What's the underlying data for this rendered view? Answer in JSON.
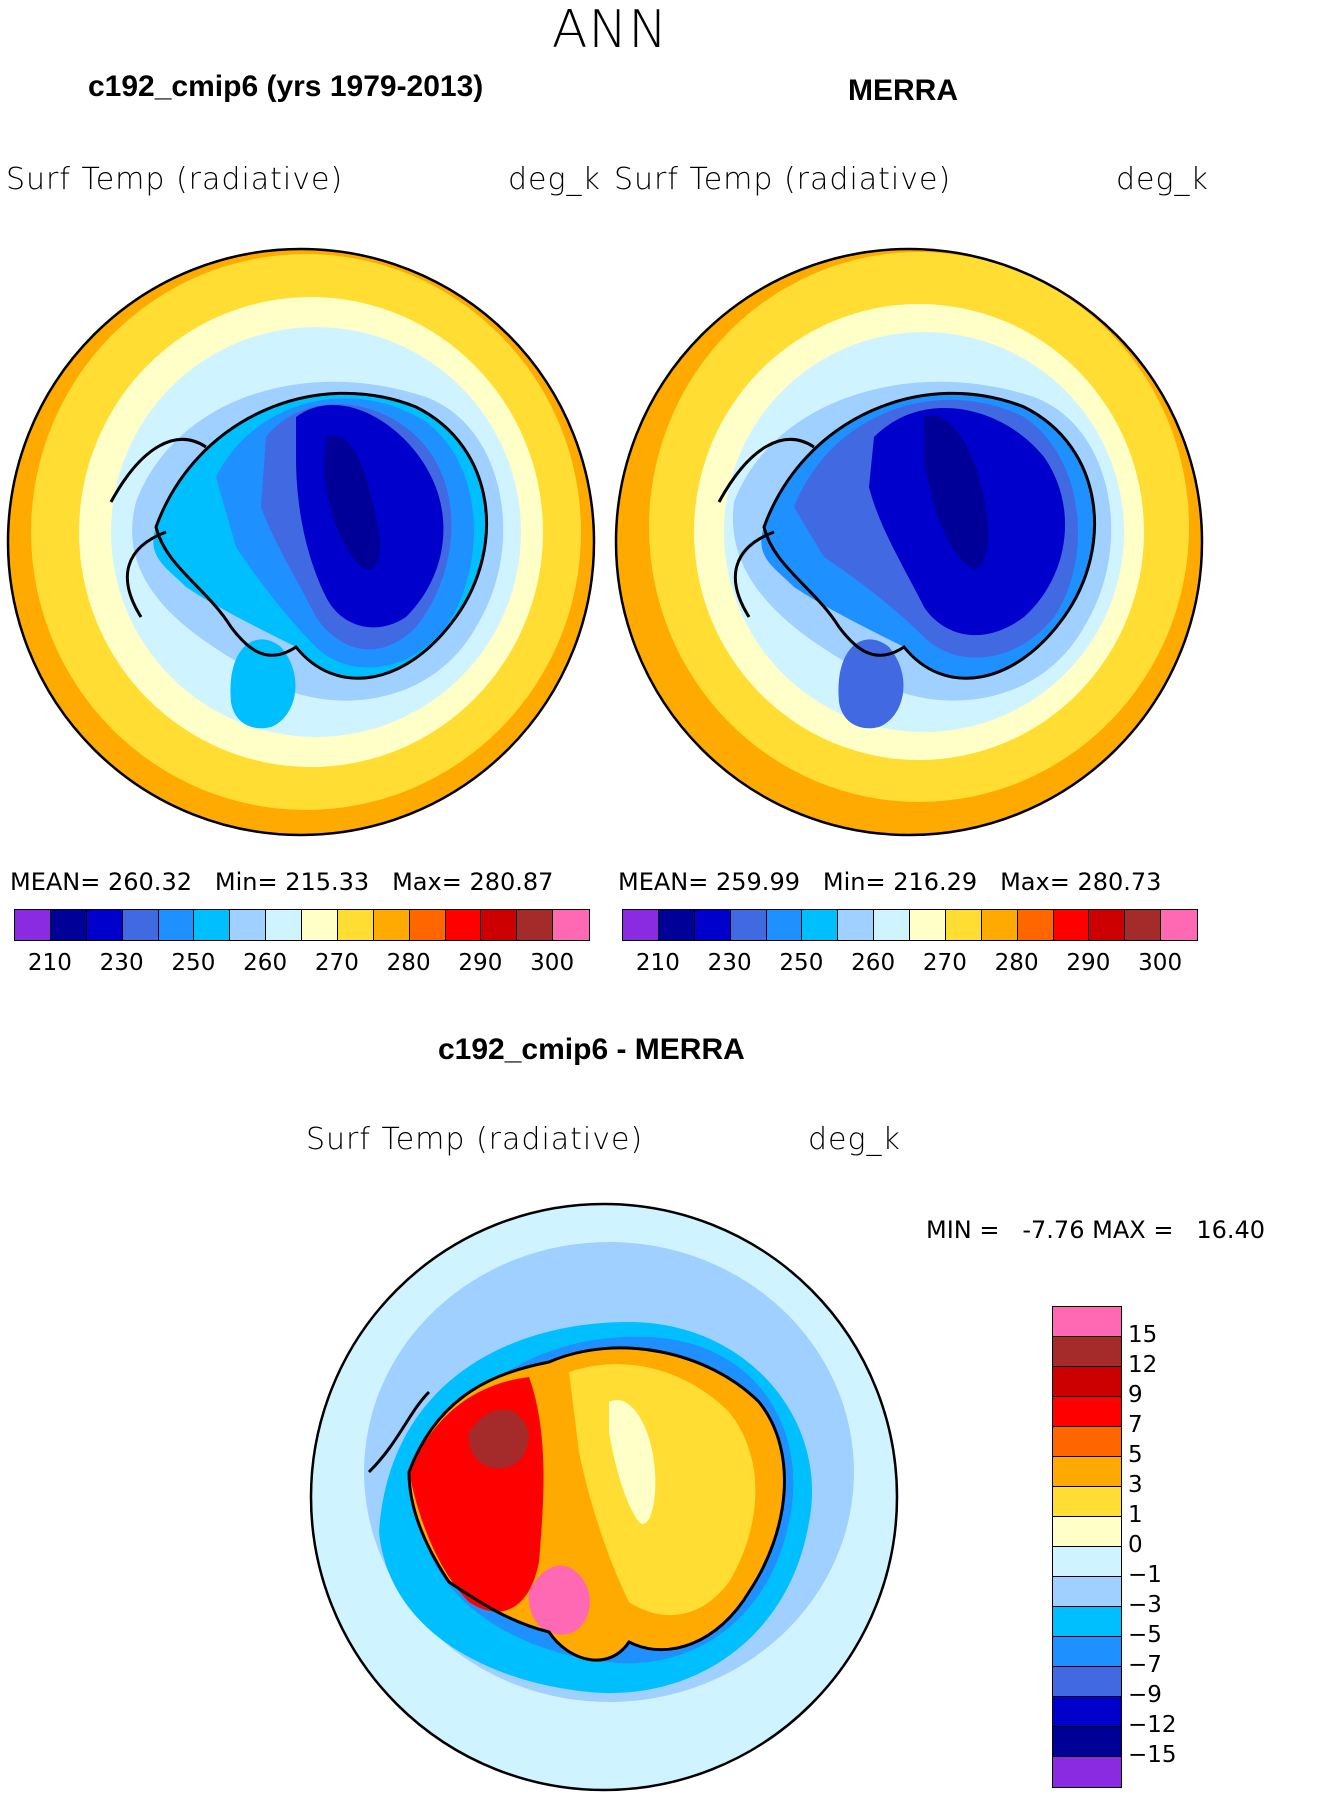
{
  "figure": {
    "title": "ANN"
  },
  "panels": [
    {
      "title": "c192_cmip6 (yrs 1979-2013)",
      "variable": "Surf Temp (radiative)",
      "units": "deg_k",
      "stats": {
        "mean_label": "MEAN=",
        "mean": "260.32",
        "min_label": "Min=",
        "min": "215.33",
        "max_label": "Max=",
        "max": "280.87"
      }
    },
    {
      "title": "MERRA",
      "variable": "Surf Temp (radiative)",
      "units": "deg_k",
      "stats": {
        "mean_label": "MEAN=",
        "mean": "259.99",
        "min_label": "Min=",
        "min": "216.29",
        "max_label": "Max=",
        "max": "280.73"
      }
    },
    {
      "title": "c192_cmip6 - MERRA",
      "variable": "Surf Temp (radiative)",
      "units": "deg_k",
      "stats": {
        "min_label": "MIN =",
        "min": "-7.76",
        "max_label": "MAX =",
        "max": "16.40"
      }
    }
  ],
  "colorbar_abs": {
    "colors": [
      "#8a2be2",
      "#000099",
      "#0000cc",
      "#4169e1",
      "#1e90ff",
      "#00bfff",
      "#a0d0ff",
      "#d0f4ff",
      "#ffffc8",
      "#ffdd33",
      "#ffaa00",
      "#ff6600",
      "#ff0000",
      "#cc0000",
      "#a52a2a",
      "#ff69b4"
    ],
    "labels": [
      "210",
      "230",
      "250",
      "260",
      "270",
      "280",
      "290",
      "300"
    ]
  },
  "colorbar_diff": {
    "colors": [
      "#ff69b4",
      "#a52a2a",
      "#cc0000",
      "#ff0000",
      "#ff6600",
      "#ffaa00",
      "#ffdd33",
      "#ffffc8",
      "#d0f4ff",
      "#a0d0ff",
      "#00bfff",
      "#1e90ff",
      "#4169e1",
      "#0000cc",
      "#000099",
      "#8a2be2"
    ],
    "labels": [
      "15",
      "12",
      "9",
      "7",
      "5",
      "3",
      "1",
      "0",
      "−1",
      "−3",
      "−5",
      "−7",
      "−9",
      "−12",
      "−15"
    ]
  }
}
